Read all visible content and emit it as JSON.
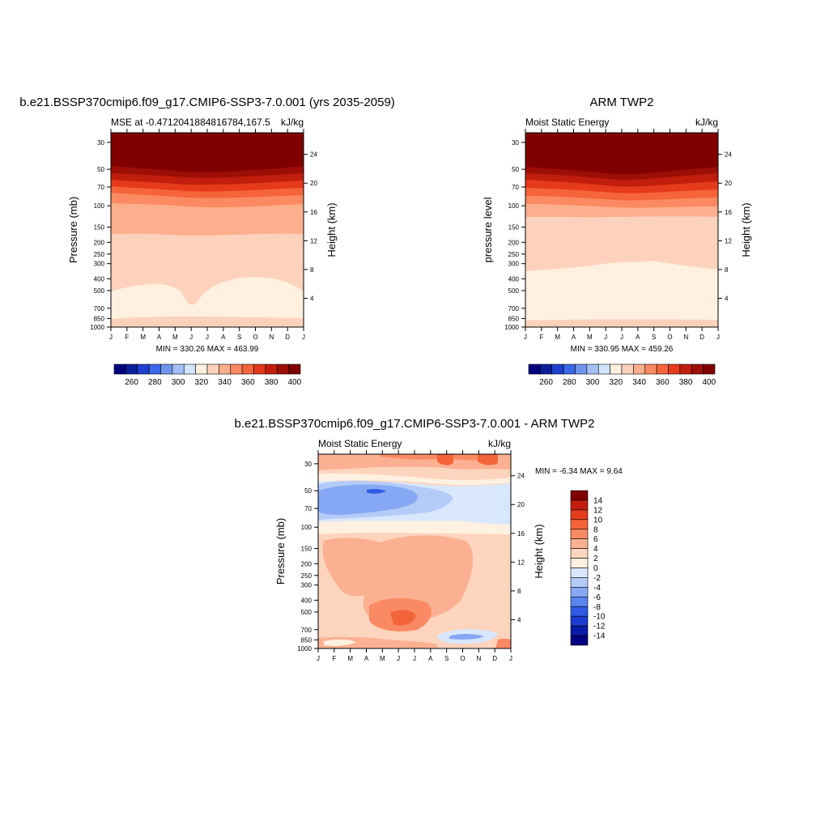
{
  "colors": {
    "mse_scale": [
      "#00007f",
      "#0a1f99",
      "#1e3fd0",
      "#3a68e8",
      "#6f96ee",
      "#a3bff5",
      "#d2e4fb",
      "#fff0e0",
      "#fdd2bc",
      "#fcaf8d",
      "#fb8a62",
      "#f5643a",
      "#e63a1c",
      "#c21e0d",
      "#9c0e06",
      "#800000"
    ],
    "diff_scale": [
      "#000080",
      "#0a1aa8",
      "#1b3cd0",
      "#2f5be6",
      "#5985ee",
      "#86a7f3",
      "#b4cbf8",
      "#d9e7fc",
      "#fff1e1",
      "#fdd4bd",
      "#fbb092",
      "#fa8a63",
      "#f4643a",
      "#e43b1d",
      "#c11e0f",
      "#800000"
    ]
  },
  "panels": {
    "model": {
      "title": "b.e21.BSSP370cmip6.f09_g17.CMIP6-SSP3-7.0.001 (yrs 2035-2059)",
      "left_subtitle": "MSE at -0.4712041884816784,167.5",
      "right_subtitle": "kJ/kg",
      "ylabel": "Pressure (mb)",
      "ylabel_right": "Height (km)",
      "minmax": "MIN = 330.26 MAX = 463.99"
    },
    "obs": {
      "title": "ARM TWP2",
      "left_subtitle": "Moist Static Energy",
      "right_subtitle": "kJ/kg",
      "ylabel": "pressure level",
      "ylabel_right": "Height (km)",
      "minmax": "MIN = 330.95 MAX = 459.26"
    },
    "diff": {
      "title": "b.e21.BSSP370cmip6.f09_g17.CMIP6-SSP3-7.0.001 - ARM TWP2",
      "left_subtitle": "Moist Static Energy",
      "right_subtitle": "kJ/kg",
      "ylabel": "Pressure (mb)",
      "ylabel_right": "Height (km)",
      "minmax": "MIN =  -6.34 MAX =   9.64"
    }
  },
  "chart_data": [
    {
      "type": "heatmap",
      "title": "b.e21.BSSP370cmip6.f09_g17.CMIP6-SSP3-7.0.001 (yrs 2035-2059)",
      "subtitle": "MSE at -0.4712041884816784,167.5",
      "units": "kJ/kg",
      "xlabel": "",
      "ylabel": "Pressure (mb)",
      "y2label": "Height (km)",
      "x_ticks": [
        "J",
        "F",
        "M",
        "A",
        "M",
        "J",
        "J",
        "A",
        "S",
        "O",
        "N",
        "D",
        "J"
      ],
      "y_ticks": [
        30,
        50,
        70,
        100,
        150,
        200,
        250,
        300,
        400,
        500,
        700,
        850,
        1000
      ],
      "y2_ticks": [
        4,
        8,
        12,
        16,
        20,
        24
      ],
      "ylim": [
        1000,
        25
      ],
      "y_scale": "log",
      "color_levels": [
        260,
        280,
        300,
        320,
        340,
        360,
        380,
        400
      ],
      "min": 330.26,
      "max": 463.99
    },
    {
      "type": "heatmap",
      "title": "ARM TWP2",
      "subtitle": "Moist Static Energy",
      "units": "kJ/kg",
      "xlabel": "",
      "ylabel": "pressure level",
      "y2label": "Height (km)",
      "x_ticks": [
        "J",
        "F",
        "M",
        "A",
        "M",
        "J",
        "J",
        "A",
        "S",
        "O",
        "N",
        "D",
        "J"
      ],
      "y_ticks": [
        30,
        50,
        70,
        100,
        150,
        200,
        250,
        300,
        400,
        500,
        700,
        850,
        1000
      ],
      "y2_ticks": [
        4,
        8,
        12,
        16,
        20,
        24
      ],
      "ylim": [
        1000,
        25
      ],
      "y_scale": "log",
      "color_levels": [
        260,
        280,
        300,
        320,
        340,
        360,
        380,
        400
      ],
      "min": 330.95,
      "max": 459.26
    },
    {
      "type": "heatmap",
      "title": "b.e21.BSSP370cmip6.f09_g17.CMIP6-SSP3-7.0.001 - ARM TWP2",
      "subtitle": "Moist Static Energy",
      "units": "kJ/kg",
      "xlabel": "",
      "ylabel": "Pressure (mb)",
      "y2label": "Height (km)",
      "x_ticks": [
        "J",
        "F",
        "M",
        "A",
        "M",
        "J",
        "J",
        "A",
        "S",
        "O",
        "N",
        "D",
        "J"
      ],
      "y_ticks": [
        30,
        50,
        70,
        100,
        150,
        200,
        250,
        300,
        400,
        500,
        700,
        850,
        1000
      ],
      "y2_ticks": [
        4,
        8,
        12,
        16,
        20,
        24
      ],
      "ylim": [
        1000,
        25
      ],
      "y_scale": "log",
      "color_levels": [
        14,
        12,
        10,
        8,
        6,
        4,
        2,
        0,
        -2,
        -4,
        -6,
        -8,
        -10,
        -12,
        -14
      ],
      "min": -6.34,
      "max": 9.64
    }
  ]
}
